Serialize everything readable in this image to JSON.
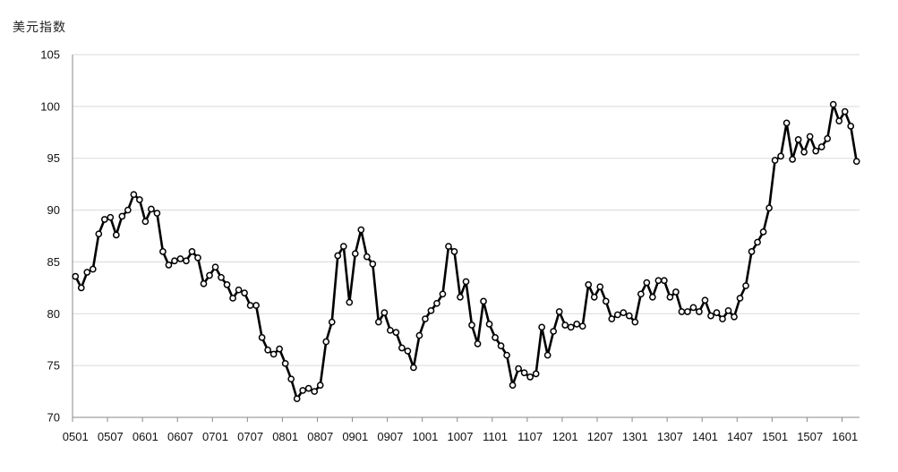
{
  "chart_data": {
    "type": "line",
    "title": "",
    "xlabel": "",
    "ylabel": "美元指数",
    "ylim": [
      70,
      105
    ],
    "yticks": [
      70,
      75,
      80,
      85,
      90,
      95,
      100,
      105
    ],
    "xtick_labels": [
      "0501",
      "0507",
      "0601",
      "0607",
      "0701",
      "0707",
      "0801",
      "0807",
      "0901",
      "0907",
      "1001",
      "1007",
      "1101",
      "1107",
      "1201",
      "1207",
      "1301",
      "1307",
      "1401",
      "1407",
      "1501",
      "1507",
      "1601"
    ],
    "grid": "horizontal",
    "legend": "none",
    "line_color": "#000000",
    "marker": "hollow-circle",
    "series": [
      {
        "values": [
          83.6,
          82.5,
          84.0,
          84.3,
          87.7,
          89.1,
          89.3,
          87.6,
          89.4,
          90.0,
          91.5,
          91.0,
          88.9,
          90.1,
          89.7,
          86.0,
          84.7,
          85.1,
          85.3,
          85.1,
          86.0,
          85.4,
          82.9,
          83.7,
          84.5,
          83.5,
          82.8,
          81.5,
          82.3,
          82.0,
          80.8,
          80.8,
          77.7,
          76.5,
          76.1,
          76.6,
          75.2,
          73.7,
          71.8,
          72.6,
          72.8,
          72.5,
          73.1,
          77.3,
          79.2,
          85.6,
          86.5,
          81.1,
          85.8,
          88.1,
          85.5,
          84.8,
          79.2,
          80.1,
          78.4,
          78.2,
          76.7,
          76.4,
          74.8,
          77.9,
          79.5,
          80.3,
          81.0,
          81.9,
          86.5,
          86.0,
          81.6,
          83.1,
          78.9,
          77.1,
          81.2,
          79.0,
          77.7,
          76.9,
          76.0,
          73.1,
          74.7,
          74.3,
          73.9,
          74.2,
          78.7,
          76.0,
          78.3,
          80.2,
          78.9,
          78.7,
          79.0,
          78.8,
          82.8,
          81.6,
          82.6,
          81.2,
          79.5,
          79.9,
          80.1,
          79.8,
          79.2,
          81.9,
          83.0,
          81.6,
          83.2,
          83.2,
          81.6,
          82.1,
          80.2,
          80.2,
          80.6,
          80.2,
          81.3,
          79.8,
          80.1,
          79.5,
          80.3,
          79.7,
          81.5,
          82.7,
          86.0,
          86.9,
          87.9,
          90.2,
          94.8,
          95.2,
          98.4,
          94.9,
          96.8,
          95.6,
          97.1,
          95.7,
          96.1,
          96.9,
          100.2,
          98.6,
          99.5,
          98.1,
          94.7
        ]
      }
    ]
  }
}
